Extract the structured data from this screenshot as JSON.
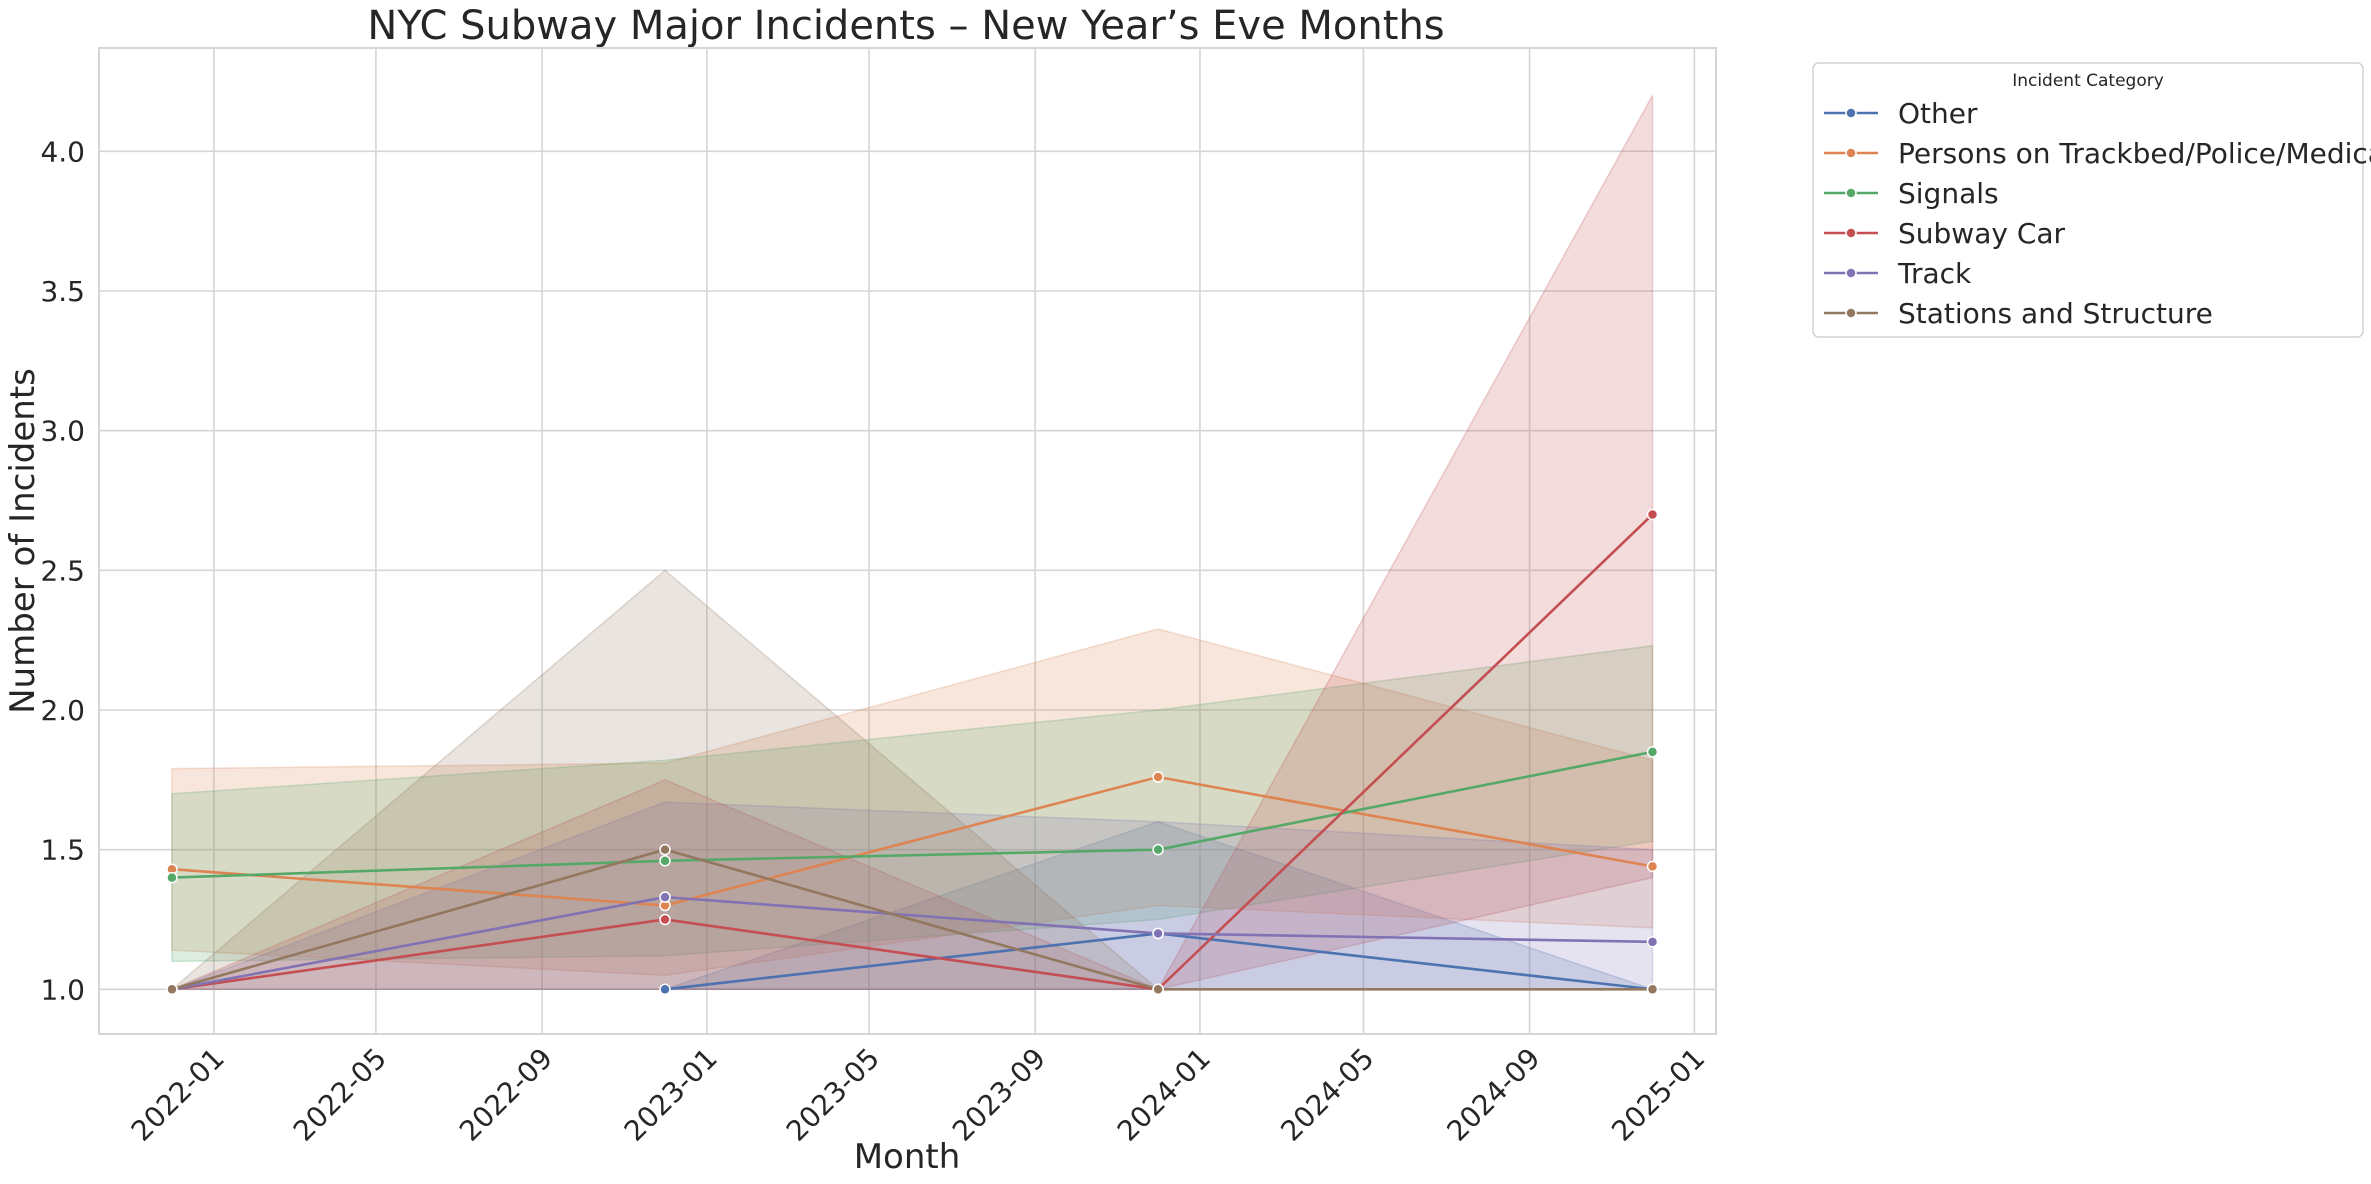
{
  "chart_data": {
    "type": "line",
    "title": "NYC Subway Major Incidents – New Year’s Eve Months",
    "xlabel": "Month",
    "ylabel": "Number of Incidents",
    "x_axis_type": "date",
    "x_ticks": [
      "2022-01",
      "2022-05",
      "2022-09",
      "2023-01",
      "2023-05",
      "2023-09",
      "2024-01",
      "2024-05",
      "2024-09",
      "2025-01"
    ],
    "y_ticks": [
      "1.0",
      "1.5",
      "2.0",
      "2.5",
      "3.0",
      "3.5",
      "4.0"
    ],
    "xlim": [
      "2021-10-08",
      "2025-01-17"
    ],
    "ylim": [
      0.84,
      4.37
    ],
    "grid": true,
    "legend": {
      "title": "Incident Category",
      "placement": "outside-top-right"
    },
    "x_dates": [
      "2021-12-01",
      "2022-12-01",
      "2023-12-01",
      "2024-12-01"
    ],
    "series": [
      {
        "name": "Other",
        "color": "#4c72b0",
        "points": [
          [
            1,
            1.0
          ],
          [
            2,
            1.2
          ],
          [
            3,
            1.0
          ]
        ],
        "ci": [
          [
            1,
            1.0,
            1.0
          ],
          [
            2,
            1.0,
            1.6
          ],
          [
            3,
            1.0,
            1.0
          ]
        ]
      },
      {
        "name": "Persons on Trackbed/Police/Medical",
        "color": "#dd8452",
        "points": [
          [
            0,
            1.43
          ],
          [
            1,
            1.3
          ],
          [
            2,
            1.76
          ],
          [
            3,
            1.44
          ]
        ],
        "ci": [
          [
            0,
            1.14,
            1.79
          ],
          [
            1,
            1.05,
            1.81
          ],
          [
            2,
            1.3,
            2.29
          ],
          [
            3,
            1.22,
            1.82
          ]
        ]
      },
      {
        "name": "Signals",
        "color": "#55a868",
        "points": [
          [
            0,
            1.4
          ],
          [
            1,
            1.46
          ],
          [
            2,
            1.5
          ],
          [
            3,
            1.85
          ]
        ],
        "ci": [
          [
            0,
            1.1,
            1.7
          ],
          [
            1,
            1.12,
            1.82
          ],
          [
            2,
            1.25,
            2.0
          ],
          [
            3,
            1.53,
            2.23
          ]
        ]
      },
      {
        "name": "Subway Car",
        "color": "#c44e52",
        "points": [
          [
            0,
            1.0
          ],
          [
            1,
            1.25
          ],
          [
            2,
            1.0
          ],
          [
            3,
            2.7
          ]
        ],
        "ci": [
          [
            0,
            1.0,
            1.0
          ],
          [
            1,
            1.0,
            1.75
          ],
          [
            2,
            1.0,
            1.0
          ],
          [
            3,
            1.4,
            4.2
          ]
        ]
      },
      {
        "name": "Track",
        "color": "#8172b3",
        "points": [
          [
            0,
            1.0
          ],
          [
            1,
            1.33
          ],
          [
            2,
            1.2
          ],
          [
            3,
            1.17
          ]
        ],
        "ci": [
          [
            0,
            1.0,
            1.0
          ],
          [
            1,
            1.0,
            1.67
          ],
          [
            2,
            1.0,
            1.6
          ],
          [
            3,
            1.0,
            1.5
          ]
        ]
      },
      {
        "name": "Stations and Structure",
        "color": "#937860",
        "points": [
          [
            0,
            1.0
          ],
          [
            1,
            1.5
          ],
          [
            2,
            1.0
          ],
          [
            3,
            1.0
          ]
        ],
        "ci": [
          [
            0,
            1.0,
            1.0
          ],
          [
            1,
            1.0,
            2.5
          ],
          [
            2,
            1.0,
            1.0
          ],
          [
            3,
            1.0,
            1.0
          ]
        ]
      }
    ]
  }
}
